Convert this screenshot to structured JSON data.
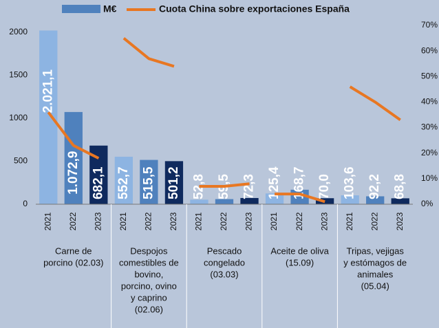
{
  "chart_data": {
    "type": "bar",
    "categories": [
      "2021",
      "2022",
      "2023",
      "2021",
      "2022",
      "2023",
      "2021",
      "2022",
      "2023",
      "2021",
      "2022",
      "2023",
      "2021",
      "2022",
      "2023"
    ],
    "groups": [
      [
        "Carne de",
        "porcino (02.03)"
      ],
      [
        "Despojos",
        "comestibles de",
        "bovino,",
        "porcino, ovino",
        "y caprino",
        "(02.06)"
      ],
      [
        "Pescado",
        "congelado",
        "(03.03)"
      ],
      [
        "Aceite de oliva",
        "(15.09)"
      ],
      [
        "Tripas, vejigas",
        "y estómagos de",
        "animales",
        "(05.04)"
      ]
    ],
    "series": [
      {
        "name": "M€",
        "type": "bar",
        "color": "#4f81bd",
        "colors": [
          "#8db4e2",
          "#4f81bd",
          "#0f2a5e"
        ],
        "values": [
          2021.1,
          1072.9,
          682.1,
          552.7,
          515.5,
          501.2,
          52.8,
          59.5,
          72.3,
          125.4,
          168.7,
          70.0,
          103.6,
          92.2,
          68.8
        ],
        "value_labels": [
          "2.021,1",
          "1.072,9",
          "682,1",
          "552,7",
          "515,5",
          "501,2",
          "52,8",
          "59,5",
          "72,3",
          "125,4",
          "168,7",
          "70,0",
          "103,6",
          "92,2",
          "68,8"
        ]
      },
      {
        "name": "Cuota China sobre exportaciones España",
        "type": "line",
        "axis": "y2",
        "color": "#e87722",
        "values": [
          36,
          23,
          18,
          65,
          57,
          54,
          7,
          7,
          8,
          4,
          4,
          1,
          46,
          40,
          33
        ]
      }
    ],
    "ylim": [
      0,
      2080
    ],
    "yticks": [
      0,
      500,
      1000,
      1500,
      2000
    ],
    "y2lim": [
      0,
      70
    ],
    "y2ticks": [
      {
        "value": 0,
        "label": "0%"
      },
      {
        "value": 10,
        "label": "10%"
      },
      {
        "value": 20,
        "label": "20%"
      },
      {
        "value": 30,
        "label": "30%"
      },
      {
        "value": 40,
        "label": "40%"
      },
      {
        "value": 50,
        "label": "50%"
      },
      {
        "value": 60,
        "label": "60%"
      },
      {
        "value": 70,
        "label": "70%"
      }
    ],
    "grid": false
  }
}
